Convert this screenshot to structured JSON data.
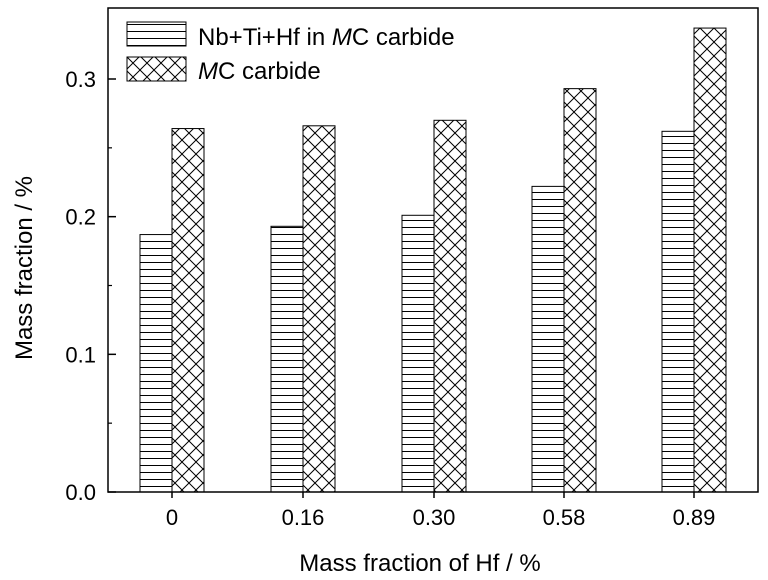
{
  "chart_data": {
    "type": "bar",
    "title": "",
    "xlabel": "Mass fraction of Hf / %",
    "ylabel": "Mass fraction / %",
    "categories": [
      "0",
      "0.16",
      "0.30",
      "0.58",
      "0.89"
    ],
    "ylim": [
      0,
      0.35
    ],
    "yticks": [
      "0.0",
      "0.1",
      "0.2",
      "0.3"
    ],
    "ytick_values": [
      0,
      0.1,
      0.2,
      0.3
    ],
    "grid": false,
    "legend_position": "top-left",
    "series": [
      {
        "name_main": "Nb+Ti+Hf in ",
        "name_italic": "M",
        "name_rest": "C carbide",
        "pattern": "horizontal-lines",
        "values": [
          0.187,
          0.193,
          0.201,
          0.222,
          0.262
        ]
      },
      {
        "name_main": "",
        "name_italic": "M",
        "name_rest": "C carbide",
        "pattern": "crosshatch",
        "values": [
          0.264,
          0.266,
          0.27,
          0.293,
          0.337
        ]
      }
    ]
  }
}
